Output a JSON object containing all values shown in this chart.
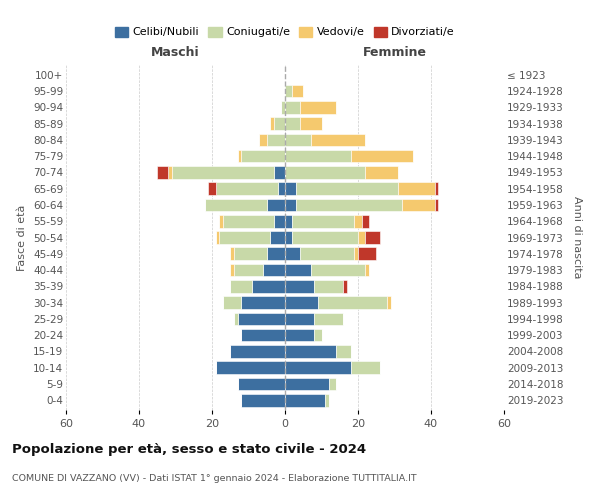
{
  "age_groups": [
    "0-4",
    "5-9",
    "10-14",
    "15-19",
    "20-24",
    "25-29",
    "30-34",
    "35-39",
    "40-44",
    "45-49",
    "50-54",
    "55-59",
    "60-64",
    "65-69",
    "70-74",
    "75-79",
    "80-84",
    "85-89",
    "90-94",
    "95-99",
    "100+"
  ],
  "birth_years": [
    "2019-2023",
    "2014-2018",
    "2009-2013",
    "2004-2008",
    "1999-2003",
    "1994-1998",
    "1989-1993",
    "1984-1988",
    "1979-1983",
    "1974-1978",
    "1969-1973",
    "1964-1968",
    "1959-1963",
    "1954-1958",
    "1949-1953",
    "1944-1948",
    "1939-1943",
    "1934-1938",
    "1929-1933",
    "1924-1928",
    "≤ 1923"
  ],
  "males": {
    "celibi": [
      12,
      13,
      19,
      15,
      12,
      13,
      12,
      9,
      6,
      5,
      4,
      3,
      5,
      2,
      3,
      0,
      0,
      0,
      0,
      0,
      0
    ],
    "coniugati": [
      0,
      0,
      0,
      0,
      0,
      1,
      5,
      6,
      8,
      9,
      14,
      14,
      17,
      17,
      28,
      12,
      5,
      3,
      1,
      0,
      0
    ],
    "vedovi": [
      0,
      0,
      0,
      0,
      0,
      0,
      0,
      0,
      1,
      1,
      1,
      1,
      0,
      0,
      1,
      1,
      2,
      1,
      0,
      0,
      0
    ],
    "divorziati": [
      0,
      0,
      0,
      0,
      0,
      0,
      0,
      0,
      0,
      0,
      0,
      0,
      0,
      2,
      3,
      0,
      0,
      0,
      0,
      0,
      0
    ]
  },
  "females": {
    "nubili": [
      11,
      12,
      18,
      14,
      8,
      8,
      9,
      8,
      7,
      4,
      2,
      2,
      3,
      3,
      0,
      0,
      0,
      0,
      0,
      0,
      0
    ],
    "coniugate": [
      1,
      2,
      8,
      4,
      2,
      8,
      19,
      8,
      15,
      15,
      18,
      17,
      29,
      28,
      22,
      18,
      7,
      4,
      4,
      2,
      0
    ],
    "vedove": [
      0,
      0,
      0,
      0,
      0,
      0,
      1,
      0,
      1,
      1,
      2,
      2,
      9,
      10,
      9,
      17,
      15,
      6,
      10,
      3,
      0
    ],
    "divorziate": [
      0,
      0,
      0,
      0,
      0,
      0,
      0,
      1,
      0,
      5,
      4,
      2,
      1,
      1,
      0,
      0,
      0,
      0,
      0,
      0,
      0
    ]
  },
  "colors": {
    "celibi": "#3d6fa0",
    "coniugati": "#c8d9a8",
    "vedovi": "#f5c96e",
    "divorziati": "#c0372a"
  },
  "xlim": 60,
  "title": "Popolazione per età, sesso e stato civile - 2024",
  "subtitle": "COMUNE DI VAZZANO (VV) - Dati ISTAT 1° gennaio 2024 - Elaborazione TUTTITALIA.IT",
  "legend_labels": [
    "Celibi/Nubili",
    "Coniugati/e",
    "Vedovi/e",
    "Divorziati/e"
  ],
  "maschi_label": "Maschi",
  "femmine_label": "Femmine",
  "fasce_label": "Fasce di età",
  "anni_label": "Anni di nascita"
}
